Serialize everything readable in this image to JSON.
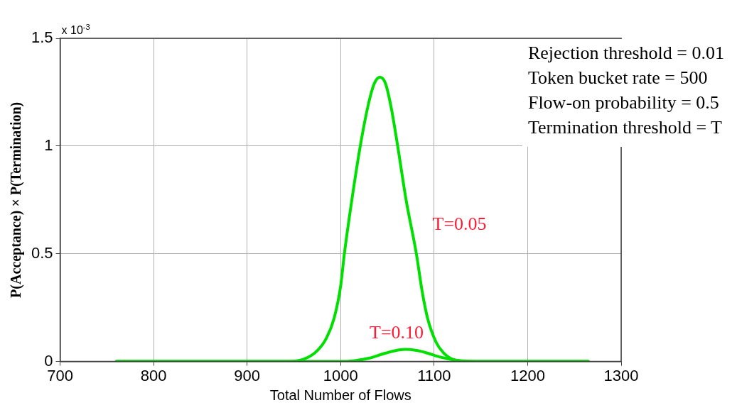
{
  "chart_data": {
    "type": "line",
    "xlabel": "Total Number of Flows",
    "ylabel": "P(Acceptance) × P(Termination)",
    "xlim": [
      700,
      1300
    ],
    "xticks": [
      700,
      800,
      900,
      1000,
      1100,
      1200,
      1300
    ],
    "ylim": [
      0,
      1.5
    ],
    "yticks": [
      0,
      0.5,
      1,
      1.5
    ],
    "grid": true,
    "marker": "none",
    "line_style": "solid",
    "series": [
      {
        "name": "T=0.05",
        "color": "#00e000",
        "x": [
          760,
          940,
          960,
          975,
          985,
          993,
          1000,
          1004,
          1012,
          1021,
          1030,
          1036,
          1042,
          1048,
          1054,
          1061,
          1070,
          1081,
          1087,
          1093,
          1102,
          1110,
          1120,
          1140,
          1265
        ],
        "values": [
          0,
          0,
          0.01,
          0.05,
          0.11,
          0.2,
          0.35,
          0.5,
          0.75,
          1.0,
          1.2,
          1.29,
          1.32,
          1.29,
          1.18,
          1.0,
          0.75,
          0.5,
          0.33,
          0.2,
          0.09,
          0.04,
          0.01,
          0,
          0
        ]
      },
      {
        "name": "T=0.10",
        "color": "#00e000",
        "x": [
          760,
          1000,
          1015,
          1030,
          1045,
          1058,
          1069,
          1080,
          1092,
          1105,
          1120,
          1135,
          1150,
          1265
        ],
        "values": [
          0,
          0,
          0.004,
          0.015,
          0.035,
          0.05,
          0.056,
          0.052,
          0.04,
          0.022,
          0.008,
          0.002,
          0,
          0
        ]
      }
    ],
    "annotations": [
      "x 10$^{-3}$",
      "Rejection threshold = 0.01",
      "Token bucket rate = 500",
      "Flow-on probability = 0.5",
      "Termination threshold = T"
    ]
  }
}
